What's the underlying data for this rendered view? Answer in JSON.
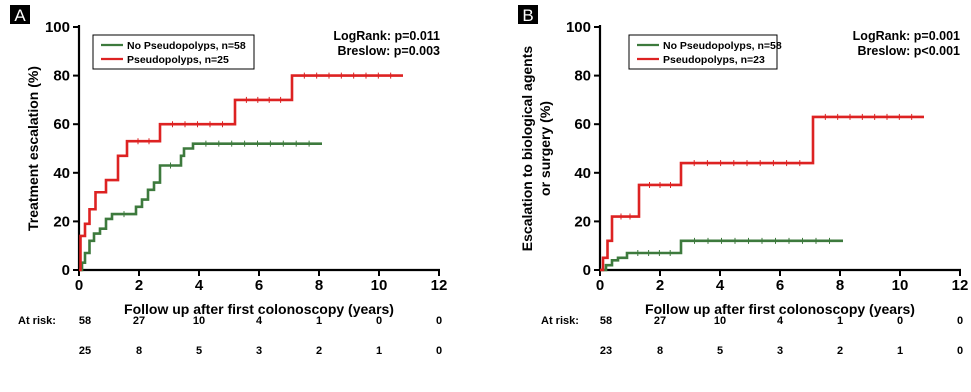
{
  "chart_data": [
    {
      "panel_label": "A",
      "type": "line",
      "step": true,
      "ylabel": "Treatment escalation (%)",
      "xlabel": "Follow up after first colonoscopy (years)",
      "xlim": [
        0,
        12
      ],
      "ylim": [
        0,
        100
      ],
      "xticks": [
        0,
        2,
        4,
        6,
        8,
        10,
        12
      ],
      "yticks": [
        0,
        20,
        40,
        60,
        80,
        100
      ],
      "stats": [
        "LogRank: p=0.011",
        "Breslow: p=0.003"
      ],
      "legend_position": "top-left",
      "series": [
        {
          "name": "No Pseudopolyps, n=58",
          "color": "#3d7a3d",
          "x": [
            0,
            0.1,
            0.2,
            0.35,
            0.5,
            0.7,
            0.9,
            1.1,
            1.9,
            2.1,
            2.3,
            2.5,
            2.7,
            3.4,
            3.5,
            3.8,
            8.1
          ],
          "y": [
            0,
            3,
            7,
            12,
            15,
            17,
            21,
            23,
            26,
            29,
            33,
            36,
            43,
            47,
            50,
            52,
            52
          ]
        },
        {
          "name": "Pseudopolyps, n=25",
          "color": "#dd2222",
          "x": [
            0,
            0.05,
            0.2,
            0.35,
            0.55,
            0.9,
            1.3,
            1.6,
            2.7,
            5.2,
            7.1,
            10.8
          ],
          "y": [
            0,
            14,
            19,
            25,
            32,
            37,
            47,
            53,
            60,
            70,
            80,
            80
          ]
        }
      ],
      "at_risk": {
        "label": "At risk:",
        "times": [
          0,
          2,
          4,
          6,
          8,
          10,
          12
        ],
        "rows": [
          [
            "58",
            "27",
            "10",
            "4",
            "1",
            "0",
            "0"
          ],
          [
            "25",
            "8",
            "5",
            "3",
            "2",
            "1",
            "0"
          ]
        ]
      }
    },
    {
      "panel_label": "B",
      "type": "line",
      "step": true,
      "ylabel": "Escalation to biological agents or surgery (%)",
      "ylabel_lines": [
        "Escalation to biological agents",
        "or surgery (%)"
      ],
      "xlabel": "Follow up after first colonoscopy (years)",
      "xlim": [
        0,
        12
      ],
      "ylim": [
        0,
        100
      ],
      "xticks": [
        0,
        2,
        4,
        6,
        8,
        10,
        12
      ],
      "yticks": [
        0,
        20,
        40,
        60,
        80,
        100
      ],
      "stats": [
        "LogRank: p=0.001",
        "Breslow: p<0.001"
      ],
      "legend_position": "top-left",
      "series": [
        {
          "name": "No Pseudopolyps, n=58",
          "color": "#3d7a3d",
          "x": [
            0,
            0.2,
            0.4,
            0.6,
            0.9,
            2.7,
            8.1
          ],
          "y": [
            0,
            2,
            4,
            5,
            7,
            12,
            12
          ]
        },
        {
          "name": "Pseudopolyps, n=23",
          "color": "#dd2222",
          "x": [
            0,
            0.1,
            0.25,
            0.4,
            1.3,
            2.7,
            7.1,
            10.8
          ],
          "y": [
            0,
            5,
            12,
            22,
            35,
            44,
            63,
            63
          ]
        }
      ],
      "at_risk": {
        "label": "At risk:",
        "times": [
          0,
          2,
          4,
          6,
          8,
          10,
          12
        ],
        "rows": [
          [
            "58",
            "27",
            "10",
            "4",
            "1",
            "0",
            "0"
          ],
          [
            "23",
            "8",
            "5",
            "3",
            "2",
            "1",
            "0"
          ]
        ]
      }
    }
  ]
}
